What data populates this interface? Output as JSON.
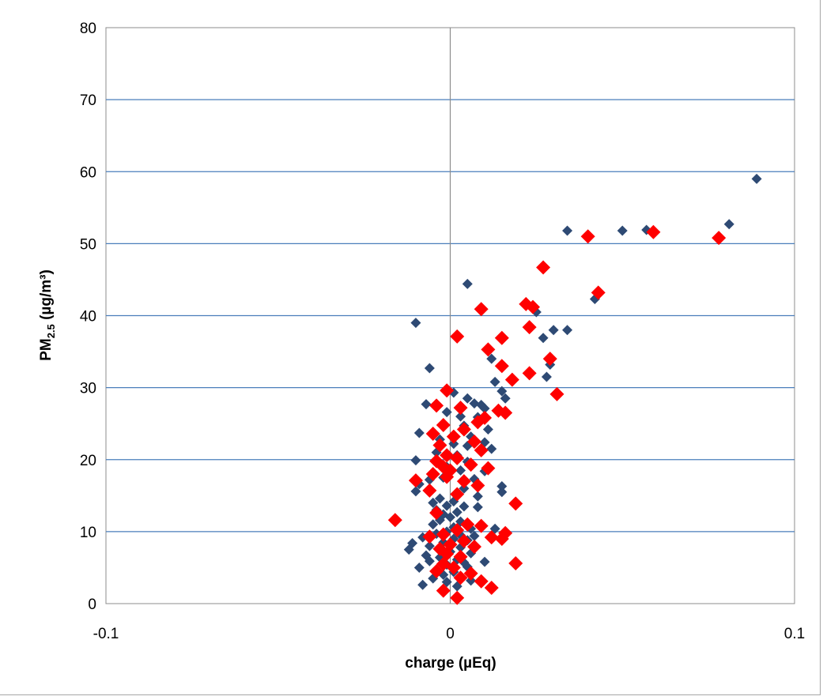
{
  "chart_data": {
    "type": "scatter",
    "title": "",
    "xlabel": "charge (µEq)",
    "ylabel": {
      "main": "PM",
      "sub": "2.5",
      "rest": " (µg/m³)"
    },
    "xlim": [
      -0.1,
      0.1
    ],
    "ylim": [
      0,
      80
    ],
    "x_ticks": [
      -0.1,
      0,
      0.1
    ],
    "x_tick_labels": [
      "-0.1",
      "0",
      "0.1"
    ],
    "y_ticks": [
      0,
      10,
      20,
      30,
      40,
      50,
      60,
      70,
      80
    ],
    "y_tick_labels": [
      "0",
      "10",
      "20",
      "30",
      "40",
      "50",
      "60",
      "70",
      "80"
    ],
    "grid": {
      "horizontal": true,
      "vertical": false
    },
    "legend": "none",
    "series": [
      {
        "color": "#2e4a74",
        "marker": "diamond-small",
        "points": [
          [
            0.089,
            59.0
          ],
          [
            0.081,
            52.7
          ],
          [
            0.057,
            51.9
          ],
          [
            0.05,
            51.8
          ],
          [
            0.034,
            51.8
          ],
          [
            0.005,
            44.4
          ],
          [
            0.042,
            42.3
          ],
          [
            0.025,
            40.5
          ],
          [
            -0.01,
            39.0
          ],
          [
            0.034,
            38.0
          ],
          [
            0.03,
            38.0
          ],
          [
            0.027,
            36.9
          ],
          [
            0.029,
            33.2
          ],
          [
            0.012,
            34.0
          ],
          [
            -0.006,
            32.7
          ],
          [
            0.028,
            31.5
          ],
          [
            0.013,
            30.8
          ],
          [
            0.015,
            29.5
          ],
          [
            0.016,
            28.5
          ],
          [
            0.001,
            29.3
          ],
          [
            0.005,
            28.5
          ],
          [
            0.007,
            27.8
          ],
          [
            0.009,
            27.6
          ],
          [
            0.01,
            27.1
          ],
          [
            -0.007,
            27.7
          ],
          [
            -0.001,
            26.6
          ],
          [
            0.003,
            26.0
          ],
          [
            0.008,
            25.9
          ],
          [
            0.004,
            24.7
          ],
          [
            0.011,
            24.2
          ],
          [
            -0.009,
            23.7
          ],
          [
            0.006,
            23.2
          ],
          [
            0.01,
            22.4
          ],
          [
            -0.003,
            22.8
          ],
          [
            0.001,
            22.2
          ],
          [
            0.005,
            21.9
          ],
          [
            0.012,
            21.5
          ],
          [
            -0.004,
            21.0
          ],
          [
            0.002,
            20.6
          ],
          [
            -0.01,
            19.9
          ],
          [
            0.005,
            19.7
          ],
          [
            -0.001,
            19.0
          ],
          [
            0.003,
            18.5
          ],
          [
            0.01,
            18.4
          ],
          [
            -0.002,
            17.5
          ],
          [
            0.007,
            17.3
          ],
          [
            -0.006,
            17.2
          ],
          [
            -0.009,
            16.6
          ],
          [
            0.015,
            16.3
          ],
          [
            0.004,
            16.0
          ],
          [
            -0.01,
            15.6
          ],
          [
            0.015,
            15.5
          ],
          [
            0.002,
            15.2
          ],
          [
            0.008,
            14.9
          ],
          [
            -0.003,
            14.6
          ],
          [
            0.001,
            14.2
          ],
          [
            -0.005,
            14.0
          ],
          [
            -0.001,
            13.6
          ],
          [
            0.004,
            13.5
          ],
          [
            0.008,
            13.4
          ],
          [
            -0.004,
            13.0
          ],
          [
            0.002,
            12.7
          ],
          [
            -0.002,
            12.4
          ],
          [
            0.0,
            12.0
          ],
          [
            -0.003,
            11.6
          ],
          [
            0.003,
            11.4
          ],
          [
            -0.005,
            11.0
          ],
          [
            0.001,
            10.6
          ],
          [
            0.006,
            10.4
          ],
          [
            -0.001,
            10.0
          ],
          [
            0.013,
            10.4
          ],
          [
            -0.004,
            9.7
          ],
          [
            0.003,
            9.5
          ],
          [
            0.007,
            9.4
          ],
          [
            -0.008,
            9.2
          ],
          [
            0.001,
            9.0
          ],
          [
            0.005,
            8.8
          ],
          [
            -0.002,
            8.5
          ],
          [
            -0.011,
            8.4
          ],
          [
            -0.006,
            8.0
          ],
          [
            0.003,
            7.8
          ],
          [
            -0.012,
            7.5
          ],
          [
            0.0,
            7.2
          ],
          [
            0.006,
            7.0
          ],
          [
            -0.007,
            6.7
          ],
          [
            -0.003,
            6.4
          ],
          [
            0.002,
            6.1
          ],
          [
            -0.006,
            5.9
          ],
          [
            0.004,
            5.7
          ],
          [
            0.01,
            5.8
          ],
          [
            -0.001,
            5.4
          ],
          [
            0.005,
            5.1
          ],
          [
            -0.009,
            5.0
          ],
          [
            -0.004,
            4.7
          ],
          [
            0.001,
            4.4
          ],
          [
            -0.002,
            4.0
          ],
          [
            0.003,
            3.7
          ],
          [
            -0.005,
            3.5
          ],
          [
            0.006,
            3.2
          ],
          [
            -0.001,
            3.0
          ],
          [
            -0.008,
            2.6
          ],
          [
            0.002,
            2.4
          ]
        ]
      },
      {
        "color": "#ff0000",
        "marker": "diamond-large",
        "points": [
          [
            0.078,
            50.8
          ],
          [
            0.059,
            51.6
          ],
          [
            0.04,
            51.0
          ],
          [
            0.027,
            46.7
          ],
          [
            0.043,
            43.2
          ],
          [
            0.022,
            41.6
          ],
          [
            0.024,
            41.2
          ],
          [
            0.009,
            40.9
          ],
          [
            0.023,
            38.4
          ],
          [
            0.002,
            37.1
          ],
          [
            0.015,
            36.9
          ],
          [
            0.011,
            35.3
          ],
          [
            0.029,
            34.0
          ],
          [
            0.015,
            33.0
          ],
          [
            0.023,
            32.0
          ],
          [
            0.018,
            31.1
          ],
          [
            -0.001,
            29.6
          ],
          [
            0.031,
            29.1
          ],
          [
            -0.004,
            27.5
          ],
          [
            0.003,
            27.2
          ],
          [
            0.014,
            26.8
          ],
          [
            0.016,
            26.5
          ],
          [
            0.01,
            25.8
          ],
          [
            0.008,
            25.2
          ],
          [
            -0.002,
            24.8
          ],
          [
            0.004,
            24.2
          ],
          [
            -0.005,
            23.6
          ],
          [
            0.001,
            23.2
          ],
          [
            0.007,
            22.5
          ],
          [
            -0.003,
            22.0
          ],
          [
            0.009,
            21.3
          ],
          [
            -0.001,
            20.6
          ],
          [
            0.002,
            20.2
          ],
          [
            -0.004,
            19.8
          ],
          [
            0.006,
            19.3
          ],
          [
            -0.002,
            19.0
          ],
          [
            0.0,
            18.5
          ],
          [
            0.011,
            18.8
          ],
          [
            -0.005,
            18.0
          ],
          [
            -0.001,
            17.6
          ],
          [
            -0.01,
            17.1
          ],
          [
            0.004,
            17.0
          ],
          [
            0.008,
            16.4
          ],
          [
            -0.006,
            15.7
          ],
          [
            0.002,
            15.2
          ],
          [
            0.019,
            13.9
          ],
          [
            -0.004,
            12.6
          ],
          [
            -0.016,
            11.6
          ],
          [
            0.005,
            11.0
          ],
          [
            0.009,
            10.8
          ],
          [
            0.002,
            10.2
          ],
          [
            -0.002,
            9.6
          ],
          [
            0.016,
            9.8
          ],
          [
            0.012,
            9.2
          ],
          [
            0.015,
            9.0
          ],
          [
            -0.006,
            9.3
          ],
          [
            0.004,
            8.7
          ],
          [
            0.0,
            8.2
          ],
          [
            -0.003,
            7.6
          ],
          [
            0.007,
            7.9
          ],
          [
            -0.001,
            6.9
          ],
          [
            0.003,
            6.5
          ],
          [
            0.019,
            5.6
          ],
          [
            -0.002,
            5.5
          ],
          [
            0.001,
            5.0
          ],
          [
            -0.004,
            4.5
          ],
          [
            0.006,
            4.2
          ],
          [
            0.003,
            3.6
          ],
          [
            0.009,
            3.1
          ],
          [
            0.012,
            2.2
          ],
          [
            -0.002,
            1.8
          ],
          [
            0.002,
            0.8
          ]
        ]
      }
    ]
  }
}
